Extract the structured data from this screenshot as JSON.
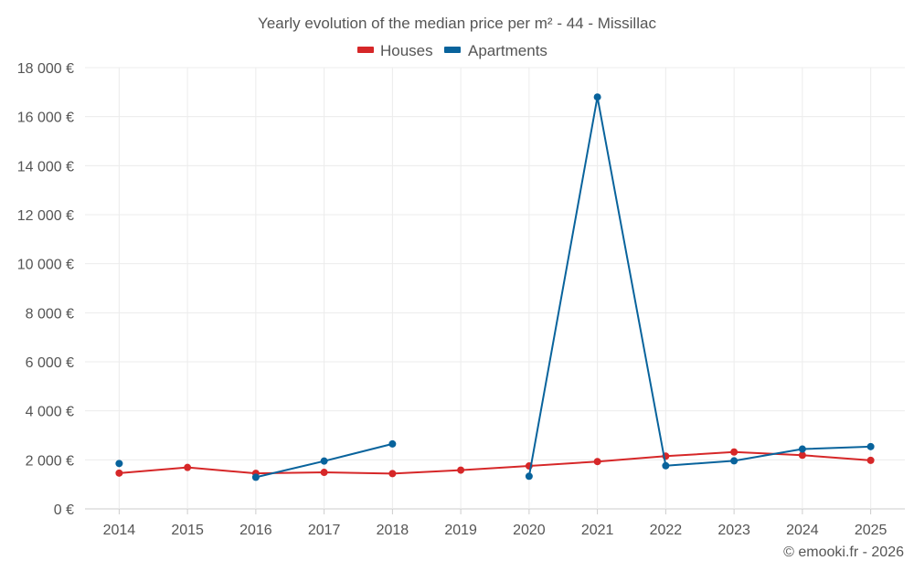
{
  "chart_data": {
    "type": "line",
    "title": "Yearly evolution of the median price per m² - 44 - Missillac",
    "categories": [
      "2014",
      "2015",
      "2016",
      "2017",
      "2018",
      "2019",
      "2020",
      "2021",
      "2022",
      "2023",
      "2024",
      "2025"
    ],
    "ylim": [
      0,
      18000
    ],
    "yticks": [
      0,
      2000,
      4000,
      6000,
      8000,
      10000,
      12000,
      14000,
      16000,
      18000
    ],
    "ytick_labels": [
      "0 €",
      "2 000 €",
      "4 000 €",
      "6 000 €",
      "8 000 €",
      "10 000 €",
      "12 000 €",
      "14 000 €",
      "16 000 €",
      "18 000 €"
    ],
    "xlabel": "",
    "ylabel": "",
    "grid": true,
    "legend_position": "top-center",
    "series": [
      {
        "name": "Houses",
        "color": "#d62728",
        "values": [
          1460,
          1690,
          1450,
          1490,
          1440,
          1580,
          1750,
          1930,
          2150,
          2320,
          2190,
          1980
        ]
      },
      {
        "name": "Apartments",
        "color": "#08639c",
        "values": [
          1850,
          null,
          1290,
          1950,
          2650,
          null,
          1330,
          16800,
          1760,
          1960,
          2440,
          2540
        ]
      }
    ]
  },
  "credit": "© emooki.fr - 2026"
}
